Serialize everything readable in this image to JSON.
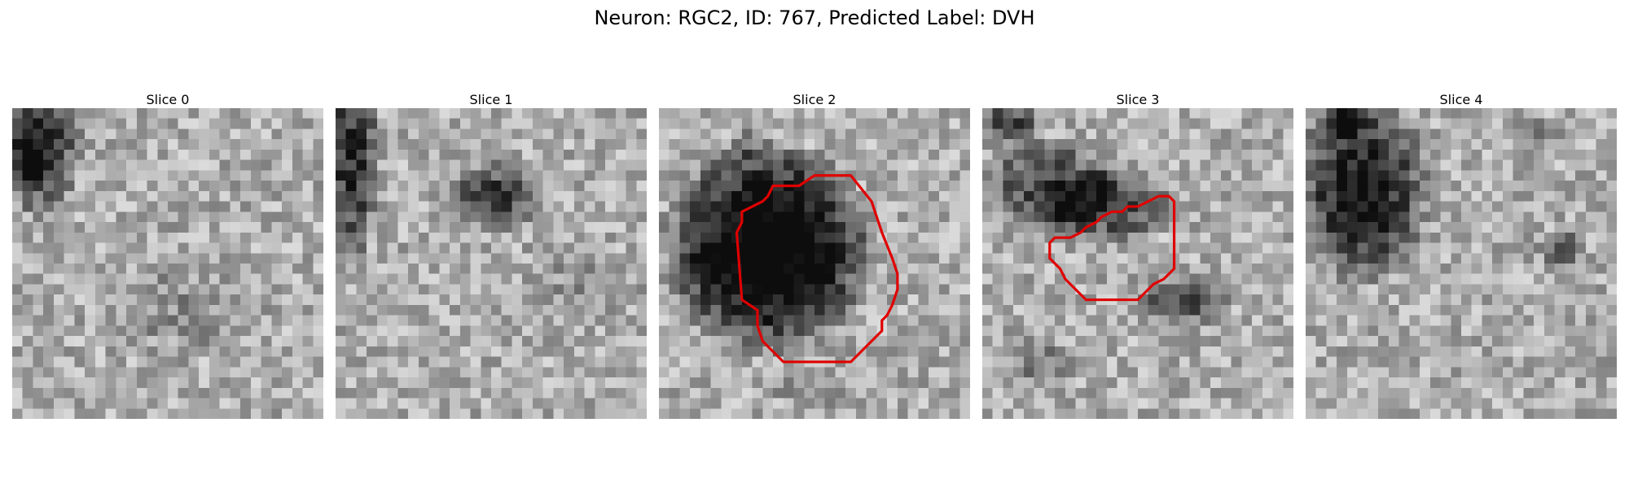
{
  "figure": {
    "title": "Neuron: RGC2, ID: 767, Predicted Label: DVH",
    "contour_color": "#e00000"
  },
  "slices": [
    {
      "title": "Slice 0",
      "has_contour": false
    },
    {
      "title": "Slice 1",
      "has_contour": false
    },
    {
      "title": "Slice 2",
      "has_contour": true
    },
    {
      "title": "Slice 3",
      "has_contour": true
    },
    {
      "title": "Slice 4",
      "has_contour": false
    }
  ]
}
